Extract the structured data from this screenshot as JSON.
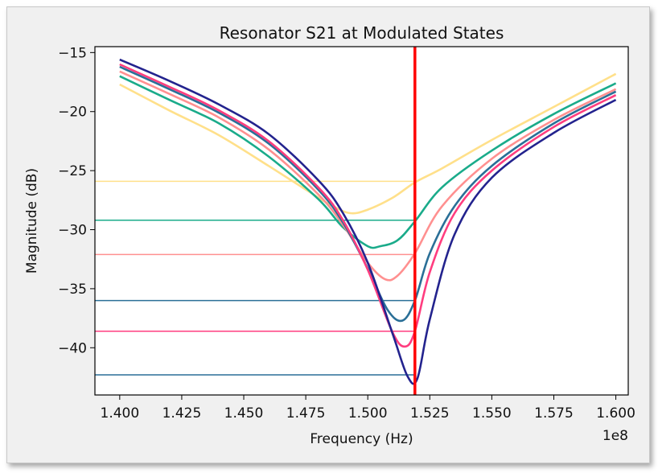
{
  "chart_data": {
    "type": "line",
    "title": "Resonator S21 at Modulated States",
    "xlabel": "Frequency (Hz)",
    "ylabel": "Magnitude (dB)",
    "x_offset_label": "1e8",
    "xlim": [
      1.39,
      1.605
    ],
    "ylim": [
      -44,
      -14.5
    ],
    "x_ticks": [
      1.4,
      1.425,
      1.45,
      1.475,
      1.5,
      1.525,
      1.55,
      1.575,
      1.6
    ],
    "x_tick_labels": [
      "1.400",
      "1.425",
      "1.450",
      "1.475",
      "1.500",
      "1.525",
      "1.550",
      "1.575",
      "1.600"
    ],
    "y_ticks": [
      -15,
      -20,
      -25,
      -30,
      -35,
      -40
    ],
    "y_tick_labels": [
      "−15",
      "−20",
      "−25",
      "−30",
      "−35",
      "−40"
    ],
    "marker_frequency": 1.519,
    "marker_color": "#ff0000",
    "grid": false,
    "series": [
      {
        "color": "#ffe08a",
        "x": [
          1.4,
          1.42,
          1.44,
          1.46,
          1.475,
          1.485,
          1.493,
          1.5,
          1.51,
          1.519,
          1.53,
          1.55,
          1.575,
          1.6
        ],
        "y": [
          -17.7,
          -19.9,
          -22.0,
          -24.6,
          -26.6,
          -27.9,
          -28.6,
          -28.3,
          -27.3,
          -26.0,
          -24.8,
          -22.4,
          -19.6,
          -16.8
        ]
      },
      {
        "color": "#1aab8a",
        "x": [
          1.4,
          1.42,
          1.44,
          1.46,
          1.48,
          1.49,
          1.5,
          1.505,
          1.512,
          1.519,
          1.53,
          1.55,
          1.575,
          1.6
        ],
        "y": [
          -17.0,
          -19.0,
          -21.0,
          -23.8,
          -27.4,
          -29.8,
          -31.4,
          -31.4,
          -30.9,
          -29.3,
          -26.4,
          -23.3,
          -20.2,
          -17.6
        ]
      },
      {
        "color": "#ff9090",
        "x": [
          1.4,
          1.42,
          1.44,
          1.46,
          1.48,
          1.49,
          1.5,
          1.507,
          1.512,
          1.519,
          1.53,
          1.55,
          1.575,
          1.6
        ],
        "y": [
          -16.6,
          -18.5,
          -20.5,
          -23.2,
          -27.0,
          -29.6,
          -32.8,
          -34.2,
          -33.9,
          -32.0,
          -28.0,
          -24.0,
          -20.7,
          -18.1
        ]
      },
      {
        "color": "#2a6f97",
        "x": [
          1.4,
          1.42,
          1.44,
          1.46,
          1.48,
          1.49,
          1.5,
          1.508,
          1.514,
          1.519,
          1.525,
          1.535,
          1.55,
          1.575,
          1.6
        ],
        "y": [
          -16.2,
          -18.1,
          -20.1,
          -22.7,
          -26.6,
          -29.4,
          -33.3,
          -36.8,
          -37.7,
          -36.0,
          -32.0,
          -28.0,
          -24.6,
          -21.0,
          -18.3
        ]
      },
      {
        "color": "#ff3d7f",
        "x": [
          1.4,
          1.42,
          1.44,
          1.46,
          1.48,
          1.49,
          1.5,
          1.51,
          1.515,
          1.519,
          1.525,
          1.535,
          1.55,
          1.575,
          1.6
        ],
        "y": [
          -16.0,
          -17.9,
          -19.9,
          -22.5,
          -26.4,
          -29.2,
          -33.4,
          -38.7,
          -39.9,
          -38.6,
          -33.6,
          -28.6,
          -25.0,
          -21.3,
          -18.6
        ]
      },
      {
        "color": "#23238e",
        "x": [
          1.4,
          1.42,
          1.44,
          1.46,
          1.48,
          1.49,
          1.5,
          1.51,
          1.516,
          1.52,
          1.525,
          1.535,
          1.55,
          1.575,
          1.6
        ],
        "y": [
          -15.6,
          -17.4,
          -19.4,
          -21.9,
          -25.8,
          -28.6,
          -32.8,
          -38.8,
          -42.4,
          -42.6,
          -37.6,
          -30.4,
          -25.6,
          -21.8,
          -19.0
        ]
      }
    ],
    "reference_lines": [
      {
        "y": -25.9,
        "color": "#ffe08a"
      },
      {
        "y": -29.2,
        "color": "#1aab8a"
      },
      {
        "y": -32.1,
        "color": "#ff9090"
      },
      {
        "y": -36.0,
        "color": "#2a6f97"
      },
      {
        "y": -38.6,
        "color": "#ff3d7f"
      },
      {
        "y": -42.3,
        "color": "#2a6f97"
      }
    ]
  }
}
